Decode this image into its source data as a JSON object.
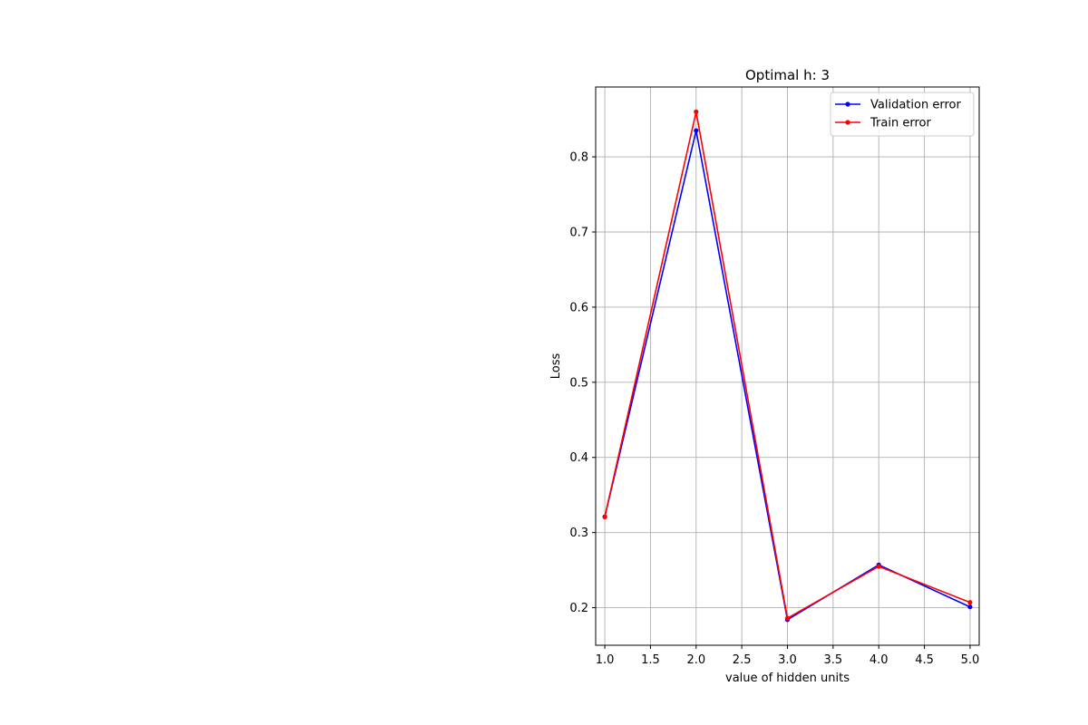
{
  "chart_data": {
    "type": "line",
    "title": "Optimal h: 3",
    "xlabel": "value of hidden units",
    "ylabel": "Loss",
    "x": [
      1,
      2,
      3,
      4,
      5
    ],
    "xlim": [
      0.9,
      5.1
    ],
    "ylim": [
      0.15,
      0.893
    ],
    "xticks": [
      1.0,
      1.5,
      2.0,
      2.5,
      3.0,
      3.5,
      4.0,
      4.5,
      5.0
    ],
    "xtick_labels": [
      "1.0",
      "1.5",
      "2.0",
      "2.5",
      "3.0",
      "3.5",
      "4.0",
      "4.5",
      "5.0"
    ],
    "yticks": [
      0.2,
      0.3,
      0.4,
      0.5,
      0.6,
      0.7,
      0.8
    ],
    "ytick_labels": [
      "0.2",
      "0.3",
      "0.4",
      "0.5",
      "0.6",
      "0.7",
      "0.8"
    ],
    "grid": true,
    "legend_position": "top-right",
    "series": [
      {
        "name": "Validation error",
        "color": "#0000ff",
        "values": [
          0.321,
          0.835,
          0.184,
          0.257,
          0.201
        ]
      },
      {
        "name": "Train error",
        "color": "#ff0000",
        "values": [
          0.321,
          0.86,
          0.186,
          0.255,
          0.207
        ]
      }
    ]
  }
}
